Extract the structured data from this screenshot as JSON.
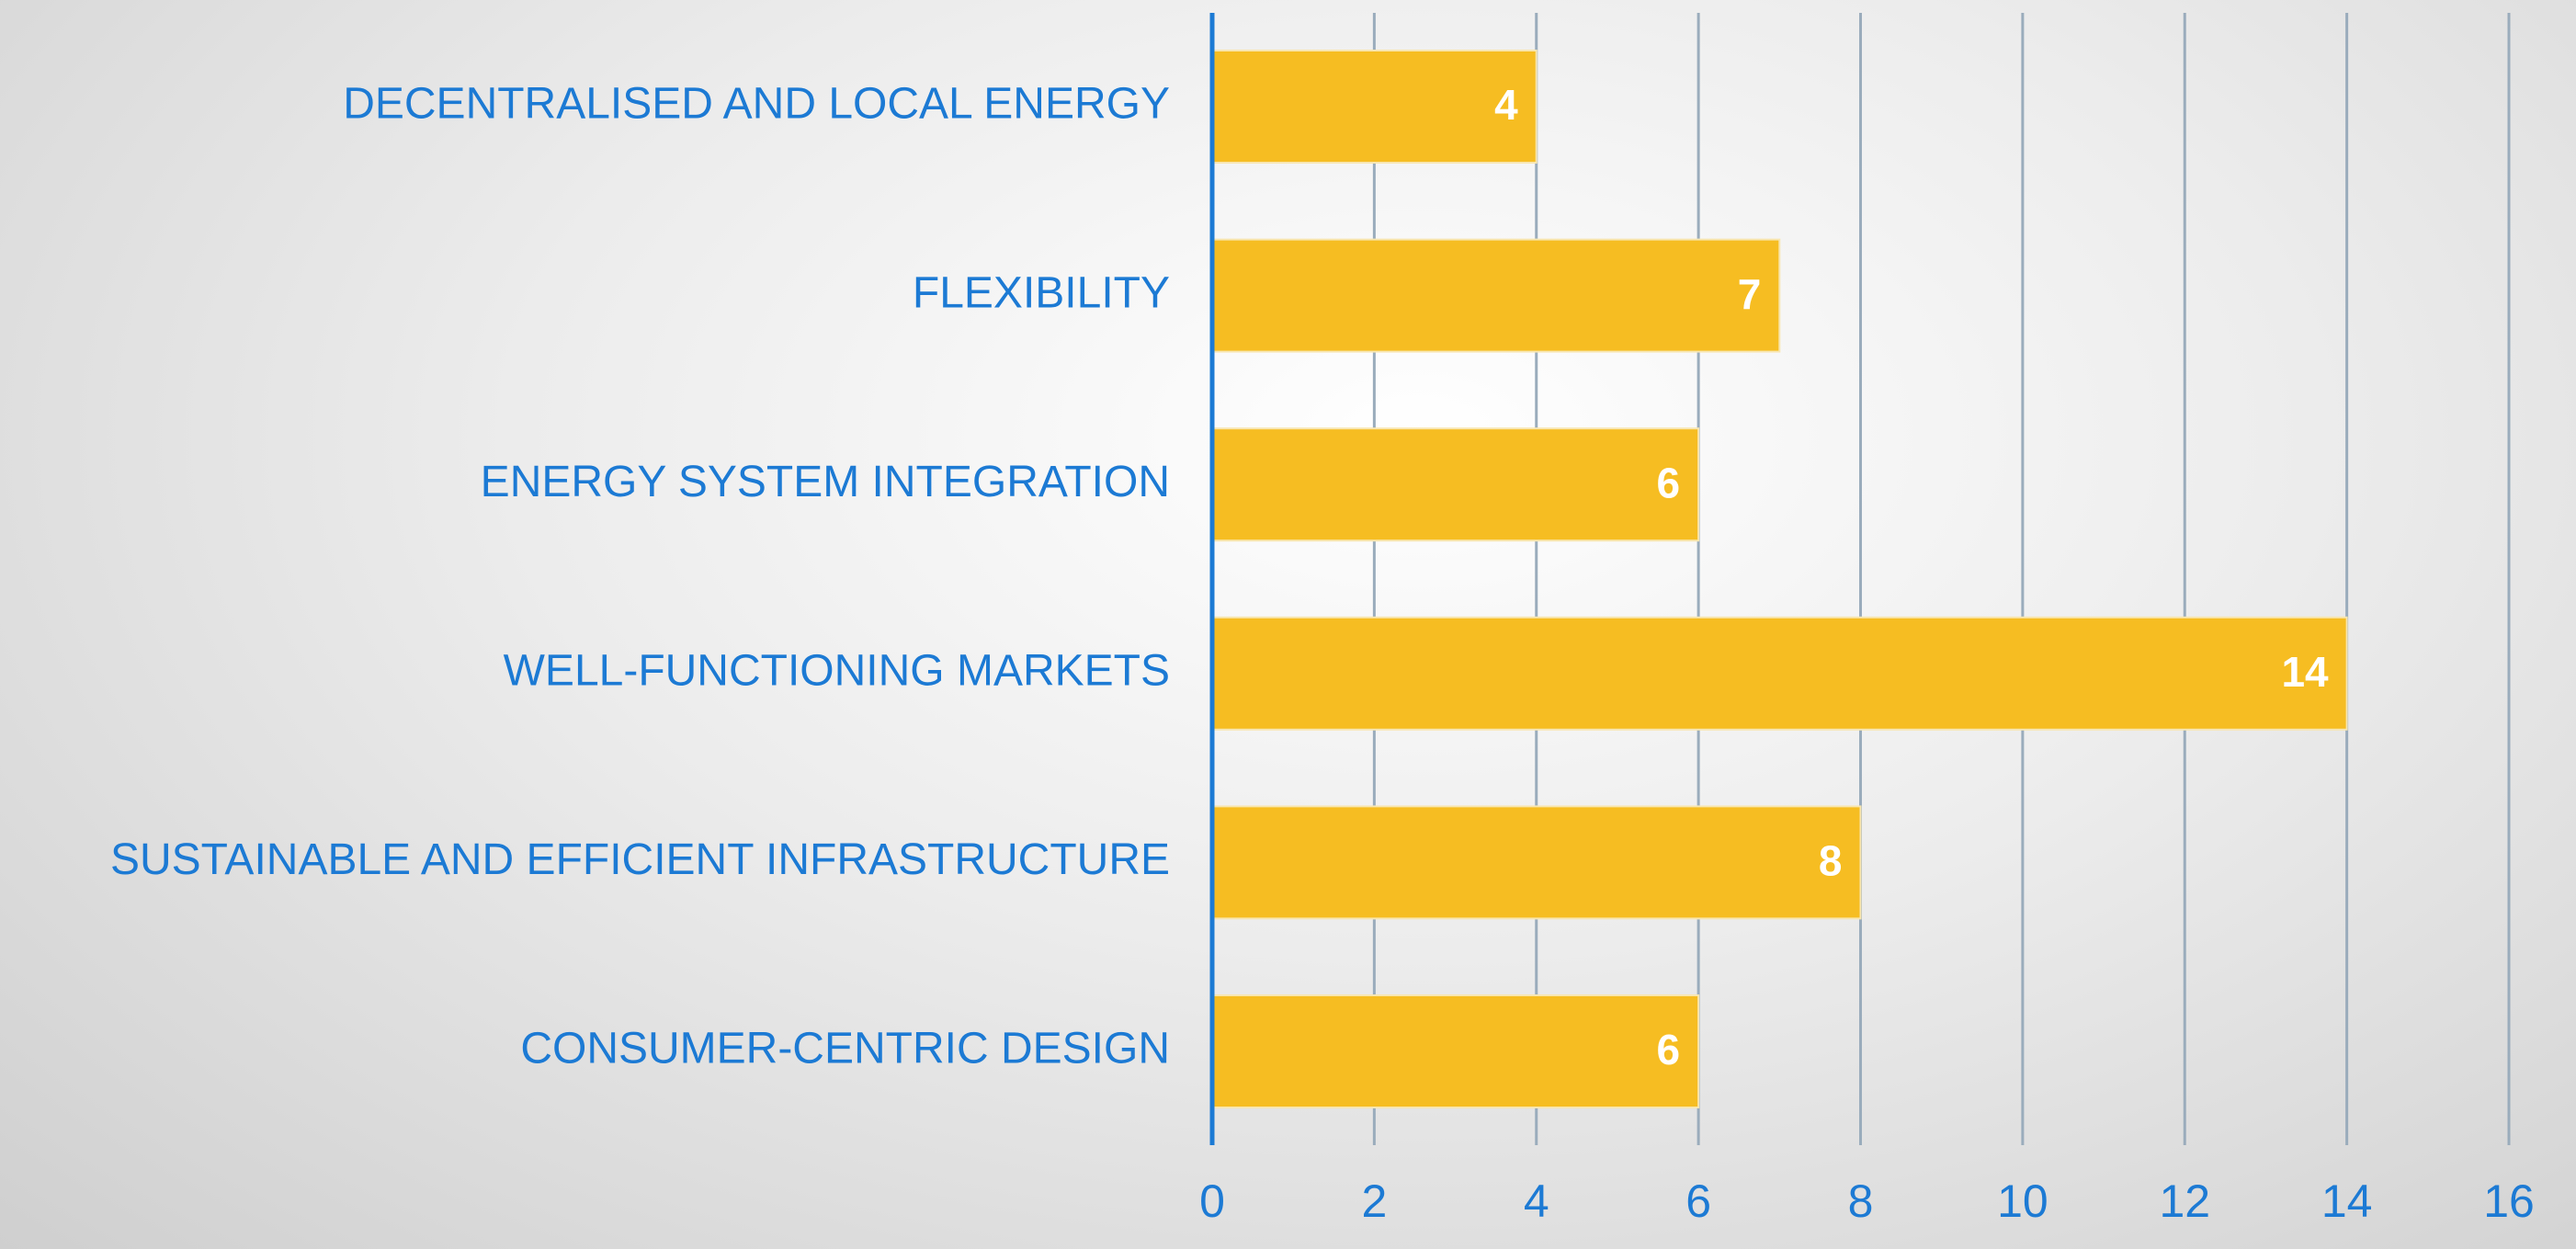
{
  "chart_data": {
    "type": "bar",
    "orientation": "horizontal",
    "categories": [
      "DECENTRALISED AND LOCAL ENERGY",
      "FLEXIBILITY",
      "ENERGY SYSTEM INTEGRATION",
      "WELL-FUNCTIONING MARKETS",
      "SUSTAINABLE AND EFFICIENT INFRASTRUCTURE",
      "CONSUMER-CENTRIC DESIGN"
    ],
    "values": [
      4,
      7,
      6,
      14,
      8,
      6
    ],
    "color": "#f6bd22",
    "xlim": [
      0,
      16
    ],
    "xticks": [
      0,
      2,
      4,
      6,
      8,
      10,
      12,
      14,
      16
    ],
    "grid": true
  }
}
